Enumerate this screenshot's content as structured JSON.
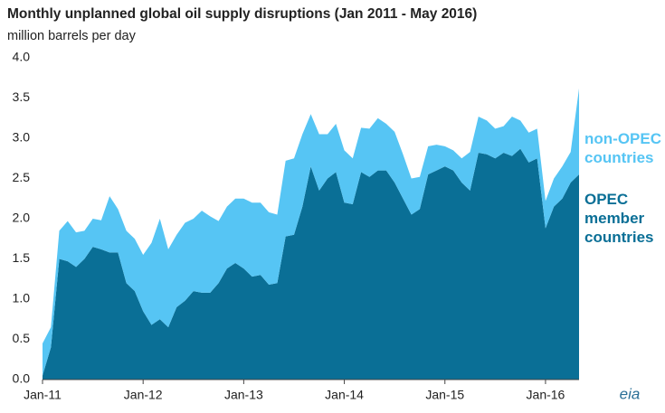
{
  "chart_data": {
    "type": "stacked_area",
    "title": "Monthly unplanned global oil supply disruptions (Jan 2011 - May 2016)",
    "subtitle": "million barrels per day",
    "logo": "eia",
    "categories": [
      "Jan-11",
      null,
      null,
      null,
      null,
      null,
      null,
      null,
      null,
      null,
      null,
      null,
      "Jan-12",
      null,
      null,
      null,
      null,
      null,
      null,
      null,
      null,
      null,
      null,
      null,
      "Jan-13",
      null,
      null,
      null,
      null,
      null,
      null,
      null,
      null,
      null,
      null,
      null,
      "Jan-14",
      null,
      null,
      null,
      null,
      null,
      null,
      null,
      null,
      null,
      null,
      null,
      "Jan-15",
      null,
      null,
      null,
      null,
      null,
      null,
      null,
      null,
      null,
      null,
      null,
      "Jan-16",
      null,
      null,
      null,
      null
    ],
    "series": [
      {
        "name": "OPEC member countries",
        "color": "#0a6f96",
        "values": [
          0.05,
          0.4,
          1.5,
          1.47,
          1.4,
          1.5,
          1.65,
          1.62,
          1.58,
          1.58,
          1.2,
          1.1,
          0.85,
          0.68,
          0.75,
          0.65,
          0.9,
          0.98,
          1.1,
          1.08,
          1.08,
          1.2,
          1.38,
          1.45,
          1.38,
          1.28,
          1.3,
          1.18,
          1.2,
          1.78,
          1.8,
          2.15,
          2.65,
          2.35,
          2.5,
          2.58,
          2.2,
          2.18,
          2.58,
          2.52,
          2.6,
          2.6,
          2.45,
          2.25,
          2.05,
          2.12,
          2.55,
          2.6,
          2.65,
          2.6,
          2.45,
          2.35,
          2.82,
          2.8,
          2.75,
          2.82,
          2.78,
          2.87,
          2.7,
          2.75,
          1.88,
          2.15,
          2.25,
          2.45,
          2.55
        ]
      },
      {
        "name": "non-OPEC countries",
        "color": "#56c5f4",
        "values": [
          0.4,
          0.25,
          0.35,
          0.5,
          0.43,
          0.35,
          0.35,
          0.36,
          0.7,
          0.54,
          0.65,
          0.65,
          0.7,
          1.02,
          1.25,
          0.97,
          0.9,
          0.97,
          0.9,
          1.02,
          0.95,
          0.77,
          0.77,
          0.8,
          0.87,
          0.92,
          0.9,
          0.9,
          0.85,
          0.94,
          0.95,
          0.9,
          0.65,
          0.7,
          0.55,
          0.6,
          0.65,
          0.57,
          0.55,
          0.6,
          0.65,
          0.58,
          0.63,
          0.55,
          0.45,
          0.4,
          0.35,
          0.32,
          0.25,
          0.25,
          0.3,
          0.48,
          0.45,
          0.42,
          0.37,
          0.33,
          0.49,
          0.35,
          0.37,
          0.37,
          0.34,
          0.35,
          0.4,
          0.38,
          1.07
        ]
      }
    ],
    "ylim": [
      0,
      4
    ],
    "yticks": [
      {
        "value": 0,
        "label": "0.0"
      },
      0.5,
      {
        "value": 1,
        "label": "1.0"
      },
      1.5,
      {
        "value": 2,
        "label": "2.0"
      },
      2.5,
      {
        "value": 3,
        "label": "3.0"
      },
      3.5,
      {
        "value": 4,
        "label": "4.0"
      }
    ],
    "grid": false
  }
}
